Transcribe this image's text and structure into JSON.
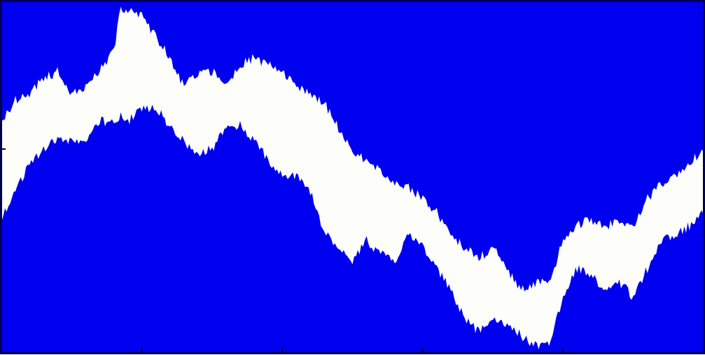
{
  "colors": {
    "background": "#0000f0",
    "band": "#fdfdfa",
    "frame": "#000050",
    "tick": "#000000"
  },
  "chart_data": {
    "type": "area",
    "title": "",
    "xlabel": "",
    "ylabel": "",
    "xlim": [
      0,
      1
    ],
    "ylim": [
      0,
      1
    ],
    "grid": false,
    "legend": "none",
    "xticks": [
      0,
      0.2,
      0.4,
      0.6,
      0.8,
      1.0
    ],
    "yticks": [
      0.58
    ],
    "series": [
      {
        "x": [
          0.0,
          0.02,
          0.04,
          0.06,
          0.08,
          0.1,
          0.12,
          0.14,
          0.16,
          0.17,
          0.18,
          0.2,
          0.22,
          0.24,
          0.26,
          0.28,
          0.3,
          0.32,
          0.34,
          0.36,
          0.38,
          0.4,
          0.42,
          0.44,
          0.46,
          0.48,
          0.5,
          0.52,
          0.54,
          0.56,
          0.58,
          0.6,
          0.62,
          0.64,
          0.66,
          0.68,
          0.7,
          0.72,
          0.74,
          0.76,
          0.78,
          0.8,
          0.82,
          0.84,
          0.86,
          0.88,
          0.9,
          0.92,
          0.94,
          0.96,
          0.98,
          1.0
        ],
        "upper": [
          0.66,
          0.72,
          0.74,
          0.78,
          0.8,
          0.74,
          0.76,
          0.8,
          0.86,
          0.98,
          0.98,
          0.96,
          0.9,
          0.84,
          0.76,
          0.79,
          0.8,
          0.76,
          0.82,
          0.84,
          0.82,
          0.8,
          0.76,
          0.74,
          0.71,
          0.64,
          0.58,
          0.54,
          0.52,
          0.48,
          0.47,
          0.44,
          0.4,
          0.34,
          0.3,
          0.27,
          0.3,
          0.24,
          0.18,
          0.2,
          0.2,
          0.32,
          0.36,
          0.38,
          0.36,
          0.38,
          0.36,
          0.44,
          0.48,
          0.5,
          0.54,
          0.58
        ],
        "lower": [
          0.38,
          0.46,
          0.54,
          0.58,
          0.61,
          0.6,
          0.6,
          0.66,
          0.65,
          0.68,
          0.66,
          0.69,
          0.7,
          0.64,
          0.6,
          0.57,
          0.58,
          0.64,
          0.65,
          0.6,
          0.55,
          0.5,
          0.5,
          0.46,
          0.34,
          0.3,
          0.26,
          0.32,
          0.28,
          0.26,
          0.34,
          0.3,
          0.24,
          0.18,
          0.1,
          0.06,
          0.1,
          0.08,
          0.05,
          0.02,
          0.02,
          0.16,
          0.24,
          0.22,
          0.18,
          0.2,
          0.16,
          0.24,
          0.32,
          0.34,
          0.36,
          0.4
        ]
      }
    ]
  }
}
